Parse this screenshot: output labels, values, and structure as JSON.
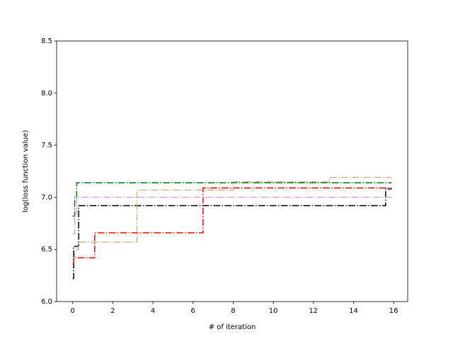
{
  "chart_data": {
    "type": "line",
    "drawstyle": "steps-post",
    "xlabel": "# of iteration",
    "ylabel": "log(loss function value)",
    "xlim": [
      -0.8,
      16.7
    ],
    "xticks": [
      0,
      2,
      4,
      6,
      8,
      10,
      12,
      14,
      16
    ],
    "ylim": [
      6.0,
      8.5
    ],
    "yticks": [
      {
        "value": 6.0,
        "label": "6.0"
      },
      {
        "value": 6.5,
        "label": "6.5"
      },
      {
        "value": 7.0,
        "label": "7.0"
      },
      {
        "value": 7.5,
        "label": "7.5"
      },
      {
        "value": 8.0,
        "label": "8.0"
      },
      {
        "value": 8.5,
        "label": "8.5"
      }
    ],
    "series": [
      {
        "color": "#008000",
        "x": [
          0,
          0.1,
          0.2,
          15.9
        ],
        "values": [
          6.82,
          7.0,
          7.14,
          7.14
        ]
      },
      {
        "color": "#000000",
        "x": [
          0,
          0.05,
          0.3,
          15.6,
          15.9
        ],
        "values": [
          6.22,
          6.53,
          6.92,
          7.08,
          7.08
        ]
      },
      {
        "color": "#ff0000",
        "x": [
          0,
          0.05,
          1.1,
          6.5,
          15.9
        ],
        "values": [
          6.36,
          6.42,
          6.66,
          7.09,
          7.09
        ]
      },
      {
        "color": "#d2b48c",
        "x": [
          0,
          0.1,
          0.3,
          3.2,
          8.0,
          12.8,
          15.9
        ],
        "values": [
          6.42,
          6.5,
          6.57,
          7.07,
          7.15,
          7.19,
          7.19
        ]
      },
      {
        "color": "#dda0dd",
        "x": [
          0,
          0.1,
          0.2,
          15.9
        ],
        "values": [
          6.65,
          6.82,
          7.0,
          7.0
        ]
      }
    ]
  }
}
